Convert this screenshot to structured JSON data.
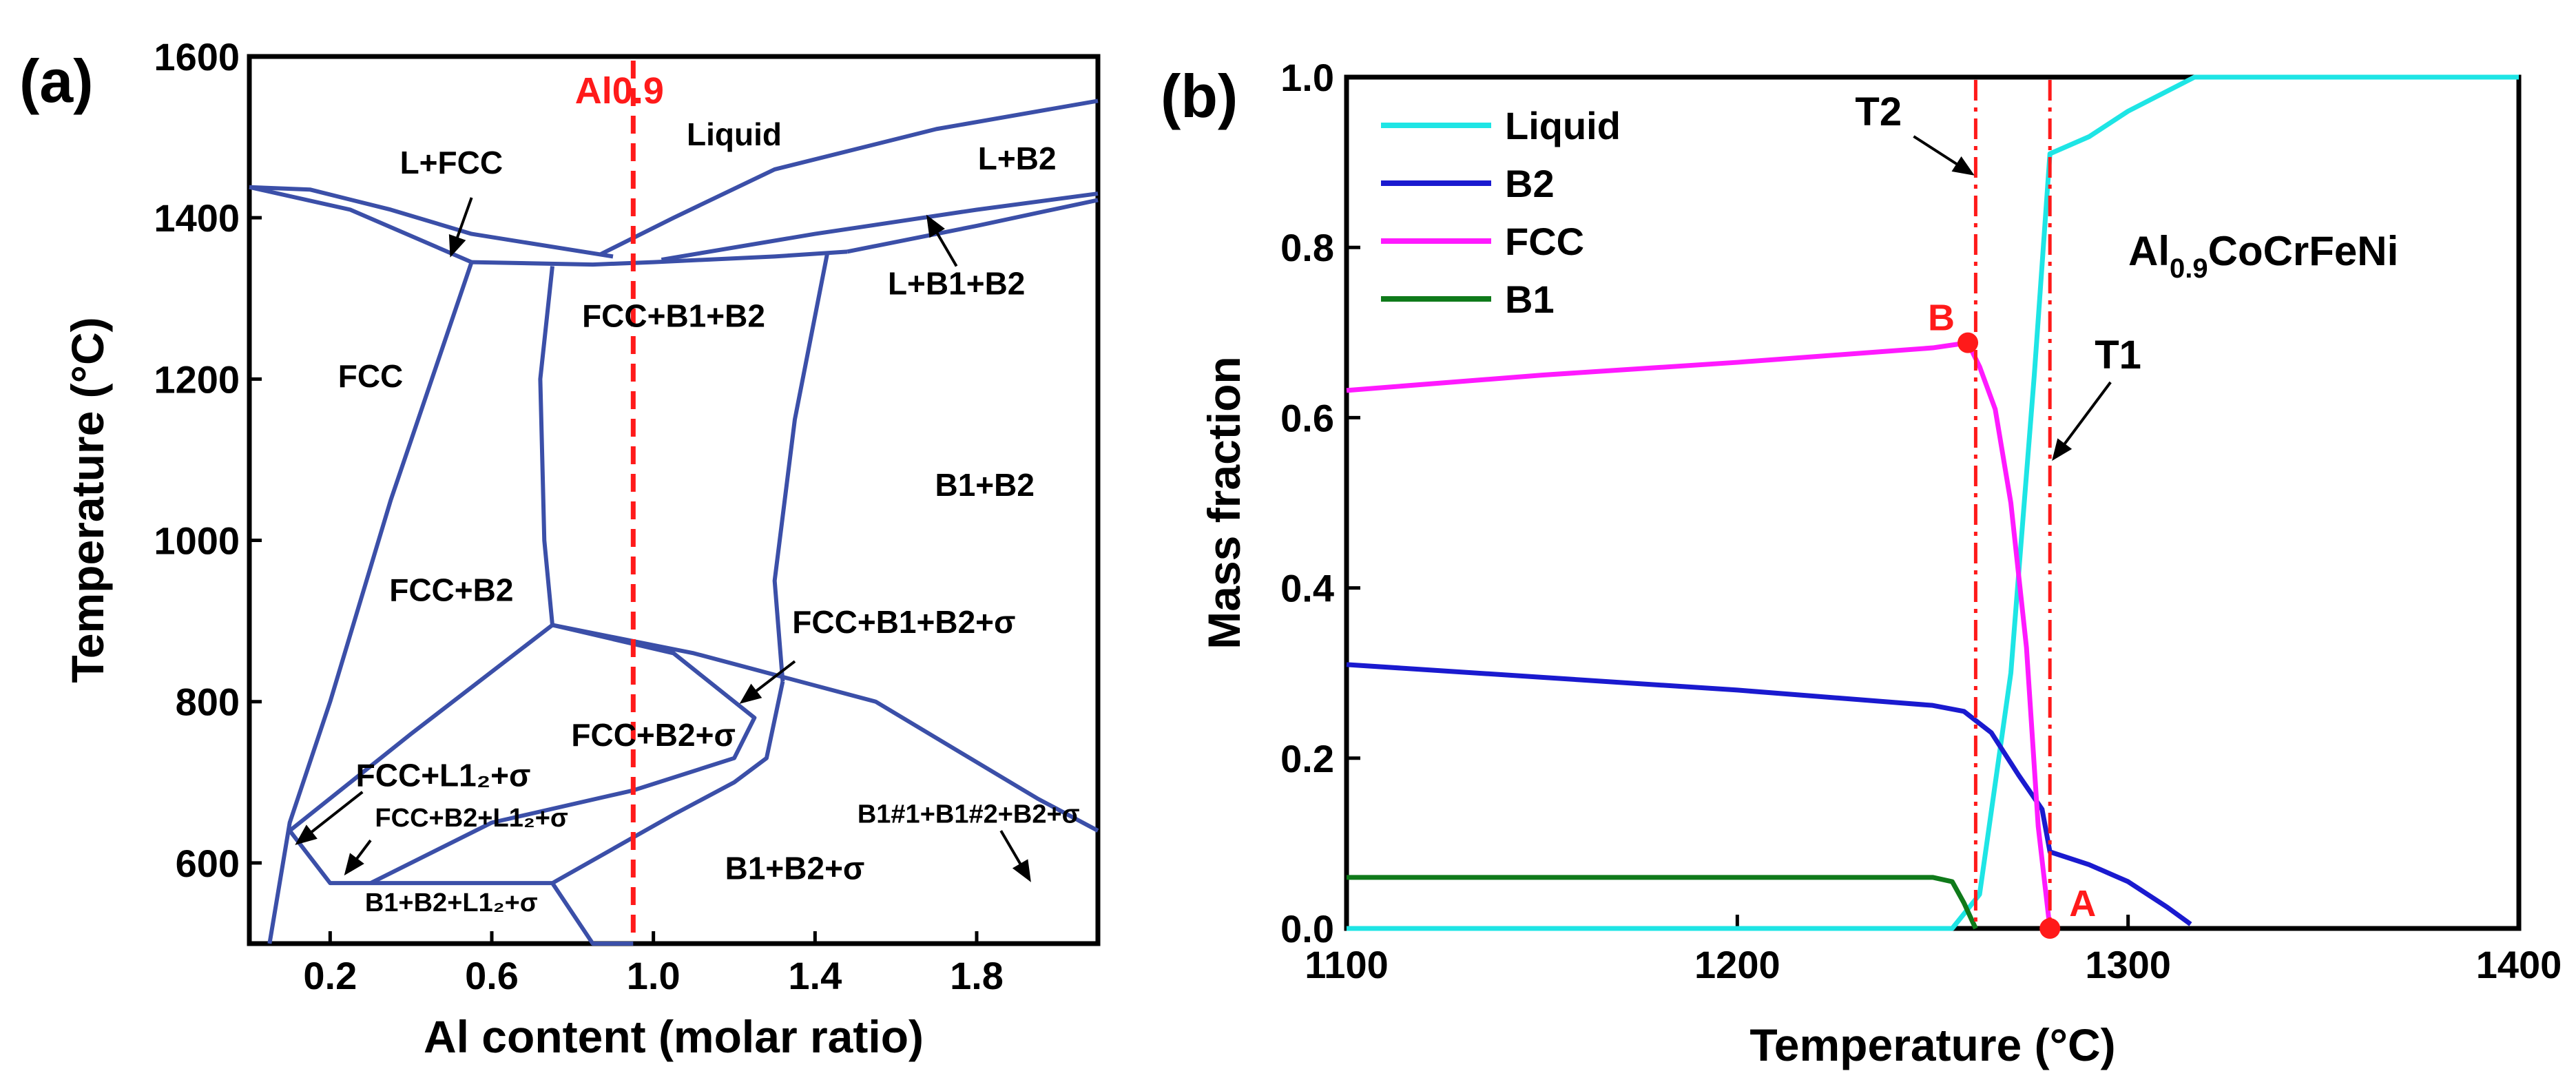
{
  "chart_data": [
    {
      "panel": "(a)",
      "type": "line",
      "title": "",
      "xlabel": "Al content (molar ratio)",
      "ylabel": "Temperature (°C)",
      "xlim": [
        0,
        2.1
      ],
      "ylim": [
        500,
        1600
      ],
      "xticks": [
        "0.2",
        "0.6",
        "1.0",
        "1.4",
        "1.8"
      ],
      "xtick_values": [
        0.2,
        0.6,
        1.0,
        1.4,
        1.8
      ],
      "yticks": [
        "600",
        "800",
        "1000",
        "1200",
        "1400",
        "1600"
      ],
      "ytick_values": [
        600,
        800,
        1000,
        1200,
        1400,
        1600
      ],
      "line_color": "#3b4fa8",
      "marker_line": {
        "label": "Al0.9",
        "x": 0.95,
        "color": "#ff1a1a"
      },
      "phase_boundaries": [
        {
          "name": "liquidus-left",
          "x": [
            0,
            0.15,
            0.35,
            0.55,
            0.9
          ],
          "y": [
            1438,
            1435,
            1410,
            1380,
            1352
          ]
        },
        {
          "name": "solidus-left",
          "x": [
            0,
            0.25,
            0.55
          ],
          "y": [
            1438,
            1410,
            1345
          ]
        },
        {
          "name": "solidus-mid",
          "x": [
            0.55,
            0.85,
            1.0,
            1.3,
            1.48
          ],
          "y": [
            1345,
            1342,
            1345,
            1352,
            1358
          ]
        },
        {
          "name": "liquidus-right",
          "x": [
            0.87,
            1.05,
            1.3,
            1.7,
            2.1
          ],
          "y": [
            1355,
            1400,
            1460,
            1510,
            1545
          ]
        },
        {
          "name": "L+B2-lower",
          "x": [
            1.02,
            1.4,
            1.8,
            2.1
          ],
          "y": [
            1348,
            1380,
            1410,
            1430
          ]
        },
        {
          "name": "L+B1+B2-lower",
          "x": [
            1.48,
            1.8,
            2.1
          ],
          "y": [
            1358,
            1390,
            1422
          ]
        },
        {
          "name": "FCC-solvus",
          "x": [
            0.55,
            0.35,
            0.2,
            0.1,
            0.05
          ],
          "y": [
            1345,
            1050,
            800,
            650,
            500
          ]
        },
        {
          "name": "B1-left",
          "x": [
            0.75,
            0.72,
            0.73,
            0.75
          ],
          "y": [
            1340,
            1200,
            1000,
            895
          ]
        },
        {
          "name": "B1-right",
          "x": [
            1.43,
            1.35,
            1.3,
            1.32
          ],
          "y": [
            1355,
            1150,
            950,
            825
          ]
        },
        {
          "name": "FCC+B2-lower",
          "x": [
            0.1,
            0.4,
            0.75
          ],
          "y": [
            640,
            760,
            895
          ]
        },
        {
          "name": "sigma-upper",
          "x": [
            0.75,
            1.1,
            1.55,
            1.95,
            2.1
          ],
          "y": [
            895,
            860,
            800,
            680,
            640
          ]
        },
        {
          "name": "sigma-lobe",
          "x": [
            0.75,
            1.05,
            1.25,
            1.2,
            0.95,
            0.6,
            0.3
          ],
          "y": [
            895,
            860,
            780,
            730,
            690,
            650,
            575
          ]
        },
        {
          "name": "sigma-right",
          "x": [
            1.32,
            1.28,
            1.2,
            1.05,
            0.75
          ],
          "y": [
            825,
            730,
            700,
            660,
            575
          ]
        },
        {
          "name": "L12-boundaries",
          "x": [
            0.1,
            0.2,
            0.3,
            0.75,
            0.85,
            0.95
          ],
          "y": [
            640,
            575,
            575,
            575,
            500,
            500
          ]
        }
      ],
      "annotations": [
        {
          "text": "Liquid",
          "x": 1.2,
          "y": 1490
        },
        {
          "text": "L+FCC",
          "x": 0.5,
          "y": 1455
        },
        {
          "text": "L+B2",
          "x": 1.9,
          "y": 1460
        },
        {
          "text": "L+B1+B2",
          "x": 1.75,
          "y": 1305
        },
        {
          "text": "FCC",
          "x": 0.3,
          "y": 1190
        },
        {
          "text": "FCC+B1+B2",
          "x": 1.05,
          "y": 1265
        },
        {
          "text": "B1+B2",
          "x": 1.82,
          "y": 1055
        },
        {
          "text": "FCC+B2",
          "x": 0.5,
          "y": 925
        },
        {
          "text": "FCC+B1+B2+σ",
          "x": 1.62,
          "y": 885
        },
        {
          "text": "FCC+B2+σ",
          "x": 1.0,
          "y": 745
        },
        {
          "text": "FCC+L1₂+σ",
          "x": 0.48,
          "y": 695
        },
        {
          "text": "FCC+B2+L1₂+σ",
          "x": 0.55,
          "y": 645
        },
        {
          "text": "B1#1+B1#2+B2+σ",
          "x": 1.78,
          "y": 650
        },
        {
          "text": "B1+B2+σ",
          "x": 1.35,
          "y": 580
        },
        {
          "text": "B1+B2+L1₂+σ",
          "x": 0.5,
          "y": 540
        }
      ]
    },
    {
      "panel": "(b)",
      "type": "line",
      "title": "",
      "xlabel": "Temperature (°C)",
      "ylabel": "Mass fraction",
      "xlim": [
        1100,
        1400
      ],
      "ylim": [
        0,
        1.0
      ],
      "xticks": [
        "1100",
        "1200",
        "1300",
        "1400"
      ],
      "xtick_values": [
        1100,
        1200,
        1300,
        1400
      ],
      "yticks": [
        "0.0",
        "0.2",
        "0.4",
        "0.6",
        "0.8",
        "1.0"
      ],
      "ytick_values": [
        0,
        0.2,
        0.4,
        0.6,
        0.8,
        1.0
      ],
      "series": [
        {
          "name": "Liquid",
          "color": "#1ee5e5",
          "x": [
            1100,
            1255,
            1262,
            1270,
            1276,
            1280,
            1290,
            1300,
            1317,
            1400
          ],
          "y": [
            0,
            0,
            0.04,
            0.3,
            0.65,
            0.91,
            0.93,
            0.96,
            1.0,
            1.0
          ]
        },
        {
          "name": "B2",
          "color": "#1a1acf",
          "x": [
            1100,
            1150,
            1200,
            1250,
            1258,
            1265,
            1272,
            1278,
            1280,
            1290,
            1300,
            1310,
            1316
          ],
          "y": [
            0.31,
            0.295,
            0.28,
            0.262,
            0.255,
            0.23,
            0.18,
            0.14,
            0.09,
            0.075,
            0.055,
            0.025,
            0.005
          ]
        },
        {
          "name": "FCC",
          "color": "#ff1aff",
          "x": [
            1100,
            1150,
            1200,
            1250,
            1259,
            1262,
            1266,
            1270,
            1274,
            1277,
            1280
          ],
          "y": [
            0.632,
            0.65,
            0.665,
            0.682,
            0.688,
            0.66,
            0.61,
            0.5,
            0.33,
            0.12,
            0.0
          ]
        },
        {
          "name": "B1",
          "color": "#0f7a1a",
          "x": [
            1100,
            1200,
            1250,
            1255,
            1258,
            1261
          ],
          "y": [
            0.06,
            0.06,
            0.06,
            0.055,
            0.03,
            0.0
          ]
        }
      ],
      "vertical_lines": [
        {
          "label": "T2",
          "x": 1261,
          "color": "#ff1a1a"
        },
        {
          "label": "T1",
          "x": 1280,
          "color": "#ff1a1a"
        }
      ],
      "points": [
        {
          "label": "B",
          "x": 1259,
          "y": 0.688
        },
        {
          "label": "A",
          "x": 1280,
          "y": 0.0
        }
      ],
      "composition_label": {
        "base": "Al",
        "sub": "0.9",
        "rest": "CoCrFeNi"
      },
      "legend": {
        "placement": "top-left",
        "entries": [
          "Liquid",
          "B2",
          "FCC",
          "B1"
        ]
      }
    }
  ]
}
